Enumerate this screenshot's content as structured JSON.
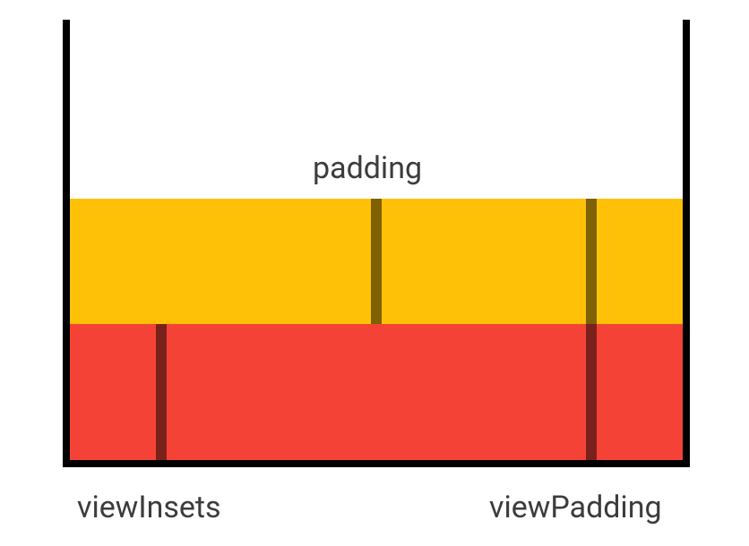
{
  "labels": {
    "padding": "padding",
    "view_insets": "viewInsets",
    "view_padding": "viewPadding"
  },
  "colors": {
    "container_border": "#000000",
    "padding_band": "#FFC107",
    "view_insets_band": "#F44336",
    "padding_marker": "#7A6000",
    "insets_marker": "#7A1F1A",
    "label_text": "#3C3C3C"
  }
}
